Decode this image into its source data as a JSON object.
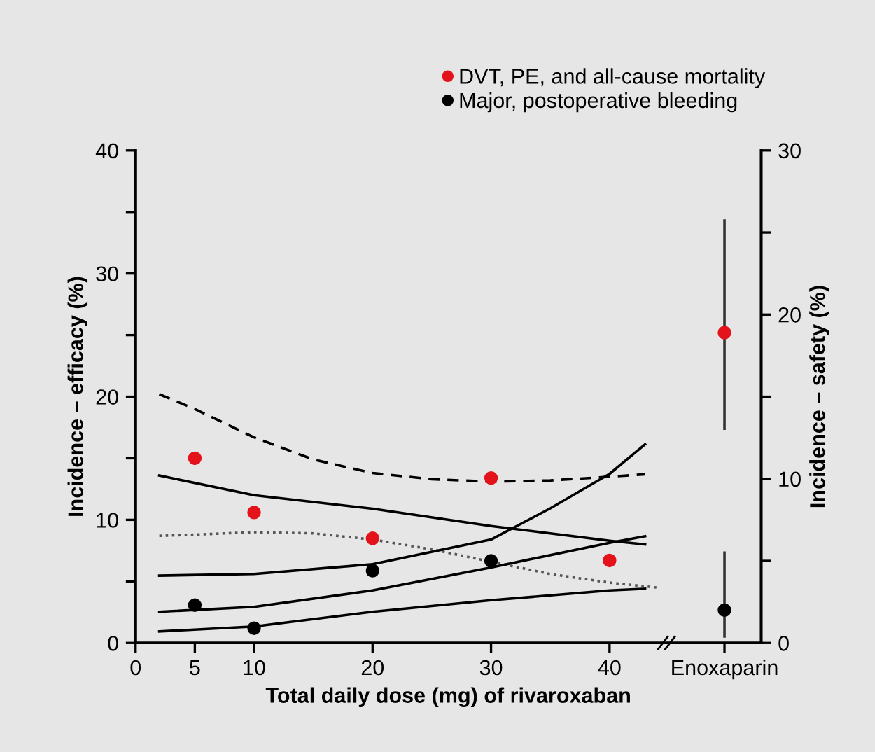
{
  "chart_data": {
    "type": "scatter",
    "xlabel": "Total daily dose (mg) of rivaroxaban",
    "ylabel": "Incidence – efficacy (%)",
    "y2label": "Incidence – safety (%)",
    "xlim": [
      0,
      52.8
    ],
    "xticks": [
      0,
      5,
      10,
      20,
      30,
      40,
      {
        "value": 49.7,
        "label": "Enoxaparin"
      }
    ],
    "ylim": [
      0,
      40
    ],
    "yticks": [
      0,
      {
        "value": 5,
        "label": null
      },
      10,
      {
        "value": 15,
        "label": null
      },
      20,
      {
        "value": 25,
        "label": null
      },
      30,
      {
        "value": 35,
        "label": null
      },
      40
    ],
    "y2lim": [
      0,
      30
    ],
    "y2ticks": [
      0,
      {
        "value": 5,
        "label": null
      },
      10,
      {
        "value": 15,
        "label": null
      },
      20,
      {
        "value": 25,
        "label": null
      },
      30
    ],
    "grid": false,
    "legend": "top right",
    "series": [
      {
        "marker": "circle",
        "name": "DVT, PE, and all-cause mortality",
        "color": "#e3121b",
        "x": [
          5,
          10,
          20,
          30,
          40,
          49.7
        ],
        "values": [
          15.0,
          10.6,
          8.5,
          13.4,
          6.7,
          25.2
        ],
        "errors": [
          null,
          null,
          null,
          null,
          null,
          [
            17.4,
            34.3
          ]
        ]
      },
      {
        "marker": "circle",
        "name": "Major, postoperative bleeding",
        "color": "#000000",
        "axis": "y2",
        "x": [
          5,
          10,
          20,
          30,
          49.7
        ],
        "values": [
          2.3,
          0.9,
          4.4,
          5.0,
          2.0
        ],
        "errors": [
          null,
          null,
          null,
          null,
          [
            0.4,
            5.5
          ]
        ]
      },
      {
        "type": "line",
        "color": "#000000",
        "line_style": "solid",
        "x": [
          2,
          10,
          20,
          30,
          40,
          43
        ],
        "values": [
          13.6,
          12.0,
          10.9,
          9.5,
          8.3,
          8.0
        ]
      },
      {
        "type": "line",
        "color": "#000000",
        "line_style": "dashed",
        "x": [
          2,
          5,
          10,
          15,
          20,
          25,
          30,
          35,
          40,
          43
        ],
        "values": [
          20.2,
          19.0,
          16.7,
          14.9,
          13.8,
          13.3,
          13.1,
          13.2,
          13.5,
          13.7
        ]
      },
      {
        "type": "line",
        "color": "#555555",
        "line_style": "dotted",
        "x": [
          2,
          5,
          10,
          15,
          20,
          25,
          30,
          35,
          40,
          44
        ],
        "values": [
          8.7,
          8.8,
          9.0,
          8.9,
          8.4,
          7.6,
          6.6,
          5.6,
          4.9,
          4.5
        ]
      },
      {
        "type": "line",
        "color": "#000000",
        "line_style": "solid",
        "axis": "y2",
        "x": [
          2,
          10,
          20,
          30,
          35,
          40,
          43
        ],
        "values": [
          4.1,
          4.2,
          4.8,
          6.3,
          8.2,
          10.3,
          12.1
        ]
      },
      {
        "type": "line",
        "color": "#000000",
        "line_style": "solid",
        "axis": "y2",
        "x": [
          2,
          10,
          20,
          30,
          40,
          43
        ],
        "values": [
          1.9,
          2.2,
          3.2,
          4.6,
          6.1,
          6.5
        ]
      },
      {
        "type": "line",
        "color": "#000000",
        "line_style": "solid",
        "axis": "y2",
        "x": [
          2,
          10,
          20,
          30,
          40,
          43
        ],
        "values": [
          0.7,
          1.0,
          1.9,
          2.6,
          3.2,
          3.3
        ]
      }
    ]
  }
}
